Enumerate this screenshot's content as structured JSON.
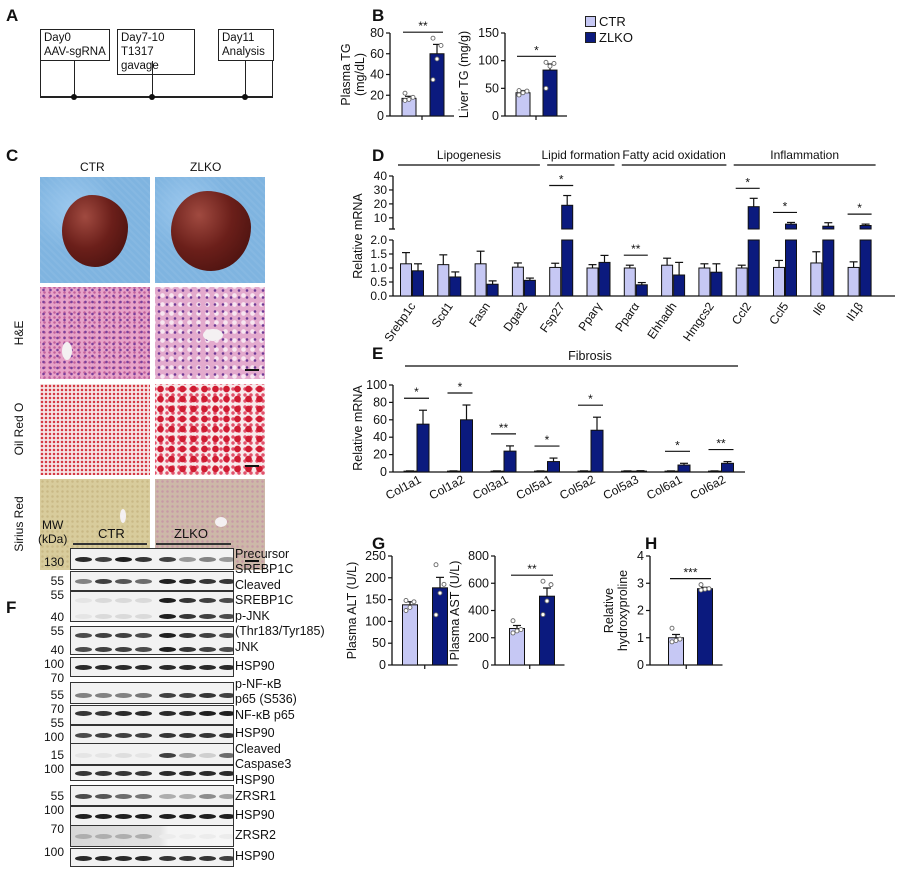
{
  "panel_labels": {
    "A": "A",
    "B": "B",
    "C": "C",
    "D": "D",
    "E": "E",
    "F": "F",
    "G": "G",
    "H": "H"
  },
  "timeline": {
    "steps": [
      {
        "day": "Day0",
        "event": "AAV-sgRNA"
      },
      {
        "day": "Day7-10",
        "event": "T1317 gavage"
      },
      {
        "day": "Day11",
        "event": "Analysis"
      }
    ]
  },
  "legend": [
    {
      "label": "CTR",
      "color": "#c6c8f4"
    },
    {
      "label": "ZLKO",
      "color": "#0b1a7e"
    }
  ],
  "histology": {
    "groups": [
      "CTR",
      "ZLKO"
    ],
    "stains": [
      "H&E",
      "Oil Red O",
      "Sirius Red"
    ]
  },
  "chart_data": [
    {
      "id": "B-plasma-tg",
      "type": "bar",
      "ylabel_lines": [
        "Plasma TG",
        "(mg/dL)"
      ],
      "ylim": [
        0,
        80
      ],
      "yticks": [
        "0",
        "20",
        "40",
        "60",
        "80"
      ],
      "series": [
        {
          "name": "CTR",
          "values": [
            17
          ],
          "sem": [
            2
          ],
          "points": [
            [
              15,
              16,
              18,
              22
            ]
          ]
        },
        {
          "name": "ZLKO",
          "values": [
            60
          ],
          "sem": [
            9
          ],
          "points": [
            [
              35,
              55,
              68,
              75
            ]
          ]
        }
      ],
      "significance": [
        "**"
      ]
    },
    {
      "id": "B-liver-tg",
      "type": "bar",
      "ylabel_lines": [
        "Liver TG (mg/g)"
      ],
      "ylim": [
        0,
        150
      ],
      "yticks": [
        "0",
        "50",
        "100",
        "150"
      ],
      "series": [
        {
          "name": "CTR",
          "values": [
            42
          ],
          "sem": [
            4
          ],
          "points": [
            [
              38,
              42,
              45,
              46
            ]
          ]
        },
        {
          "name": "ZLKO",
          "values": [
            83
          ],
          "sem": [
            11
          ],
          "points": [
            [
              50,
              90,
              95,
              97
            ]
          ]
        }
      ],
      "significance": [
        "*"
      ]
    },
    {
      "id": "D-mrna",
      "type": "bar",
      "ylabel": "Relative mRNA",
      "axis_break": true,
      "ylim_lower": [
        0,
        2
      ],
      "yticks_lower": [
        "0.0",
        "0.5",
        "1.0",
        "1.5",
        "2.0"
      ],
      "ylim_upper": [
        2,
        40
      ],
      "yticks_upper": [
        "10",
        "20",
        "30",
        "40"
      ],
      "categories": [
        "Srebp1c",
        "Scd1",
        "Fasn",
        "Dgat2",
        "Fsp27",
        "Pparγ",
        "Pparα",
        "Ehhadh",
        "Hmgcs2",
        "Ccl2",
        "Ccl5",
        "Il6",
        "Il1β"
      ],
      "groups": [
        {
          "label": "Lipogenesis",
          "from": 0,
          "to": 3
        },
        {
          "label": "Lipid formation",
          "from": 4,
          "to": 5
        },
        {
          "label": "Fatty acid oxidation",
          "from": 6,
          "to": 8
        },
        {
          "label": "Inflammation",
          "from": 9,
          "to": 12
        }
      ],
      "series": [
        {
          "name": "CTR",
          "values": [
            1.15,
            1.12,
            1.15,
            1.03,
            1.02,
            1.0,
            1.0,
            1.1,
            1.0,
            1.0,
            1.02,
            1.18,
            1.02
          ],
          "sem": [
            0.4,
            0.35,
            0.45,
            0.15,
            0.15,
            0.12,
            0.1,
            0.25,
            0.15,
            0.1,
            0.25,
            0.4,
            0.2
          ]
        },
        {
          "name": "ZLKO",
          "values": [
            0.9,
            0.68,
            0.42,
            0.56,
            19,
            1.2,
            0.4,
            0.75,
            0.85,
            18,
            5.5,
            4,
            4.5
          ],
          "sem": [
            0.25,
            0.18,
            0.12,
            0.08,
            7,
            0.25,
            0.08,
            0.45,
            0.3,
            6,
            1.2,
            2.5,
            1
          ]
        }
      ],
      "significance": [
        "",
        "",
        "",
        "",
        "*",
        "",
        "**",
        "",
        "",
        "*",
        "*",
        "",
        "*"
      ]
    },
    {
      "id": "E-fibrosis",
      "type": "bar",
      "ylabel": "Relative mRNA",
      "group_label": "Fibrosis",
      "ylim": [
        0,
        100
      ],
      "yticks": [
        "0",
        "20",
        "40",
        "60",
        "80",
        "100"
      ],
      "categories": [
        "Col1a1",
        "Col1a2",
        "Col3a1",
        "Col5a1",
        "Col5a2",
        "Col5a3",
        "Col6a1",
        "Col6a2"
      ],
      "series": [
        {
          "name": "CTR",
          "values": [
            1,
            1,
            1,
            1,
            1,
            1,
            1,
            1
          ],
          "sem": [
            0.3,
            0.3,
            0.3,
            0.3,
            0.3,
            0.3,
            0.3,
            0.3
          ]
        },
        {
          "name": "ZLKO",
          "values": [
            55,
            60,
            24,
            12,
            48,
            1,
            8,
            10
          ],
          "sem": [
            16,
            17,
            6,
            4,
            15,
            0.5,
            2,
            2
          ]
        }
      ],
      "significance": [
        "*",
        "*",
        "**",
        "*",
        "*",
        "",
        "*",
        "**"
      ]
    },
    {
      "id": "G-alt",
      "type": "bar",
      "ylabel_lines": [
        "Plasma ALT (U/L)"
      ],
      "ylim": [
        0,
        250
      ],
      "yticks": [
        "0",
        "50",
        "100",
        "150",
        "200",
        "250"
      ],
      "series": [
        {
          "name": "CTR",
          "values": [
            138
          ],
          "sem": [
            7
          ],
          "points": [
            [
              125,
              132,
              145,
              148
            ]
          ]
        },
        {
          "name": "ZLKO",
          "values": [
            177
          ],
          "sem": [
            24
          ],
          "points": [
            [
              115,
              165,
              185,
              230
            ]
          ]
        }
      ],
      "significance": [
        ""
      ]
    },
    {
      "id": "G-ast",
      "type": "bar",
      "ylabel_lines": [
        "Plasma AST (U/L)"
      ],
      "ylim": [
        0,
        800
      ],
      "yticks": [
        "0",
        "200",
        "400",
        "600",
        "800"
      ],
      "series": [
        {
          "name": "CTR",
          "values": [
            268
          ],
          "sem": [
            22
          ],
          "points": [
            [
              235,
              250,
              260,
              325
            ]
          ]
        },
        {
          "name": "ZLKO",
          "values": [
            505
          ],
          "sem": [
            60
          ],
          "points": [
            [
              370,
              470,
              590,
              615
            ]
          ]
        }
      ],
      "significance": [
        "**"
      ]
    },
    {
      "id": "H-hydroxyproline",
      "type": "bar",
      "ylabel_lines": [
        "Relative",
        "hydroxyproline"
      ],
      "ylim": [
        0,
        4
      ],
      "yticks": [
        "0",
        "1",
        "2",
        "3",
        "4"
      ],
      "series": [
        {
          "name": "CTR",
          "values": [
            1.0
          ],
          "sem": [
            0.12
          ],
          "points": [
            [
              0.85,
              0.9,
              0.95,
              1.35
            ]
          ]
        },
        {
          "name": "ZLKO",
          "values": [
            2.8
          ],
          "sem": [
            0.05
          ],
          "points": [
            [
              2.75,
              2.78,
              2.8,
              2.95
            ]
          ]
        }
      ],
      "significance": [
        "***"
      ]
    }
  ],
  "western": {
    "mw_header": [
      "MW",
      "(kDa)"
    ],
    "groups": [
      "CTR",
      "ZLKO"
    ],
    "rows": [
      {
        "markers": [
          "130"
        ],
        "label_lines": [
          "Precursor",
          "SREBP1C"
        ],
        "intensity": [
          0.9,
          0.8,
          0.95,
          0.85,
          0.8,
          0.4,
          0.5,
          0.4
        ]
      },
      {
        "markers": [
          "55"
        ],
        "label_lines": [
          "Cleaved",
          "SREBP1C"
        ],
        "intensity": [
          0.5,
          0.8,
          0.7,
          0.6,
          0.95,
          0.9,
          0.85,
          0.85
        ]
      },
      {
        "markers": [
          "55",
          "40"
        ],
        "label_lines": [
          "p-JNK",
          "(Thr183/Tyr185)"
        ],
        "intensity": [
          0.05,
          0.1,
          0.1,
          0.1,
          0.95,
          0.85,
          0.8,
          0.75
        ]
      },
      {
        "markers": [
          "55",
          "40"
        ],
        "label_lines": [
          "JNK"
        ],
        "intensity": [
          0.75,
          0.8,
          0.8,
          0.75,
          0.95,
          0.85,
          0.8,
          0.75
        ]
      },
      {
        "markers": [
          "100"
        ],
        "label_lines": [
          "HSP90"
        ],
        "intensity": [
          0.9,
          0.9,
          0.9,
          0.9,
          0.9,
          0.9,
          0.9,
          0.9
        ]
      },
      {
        "markers": [
          "70",
          "55"
        ],
        "label_lines": [
          "p-NF-κB",
          "p65 (S536)"
        ],
        "intensity": [
          0.5,
          0.5,
          0.5,
          0.55,
          0.8,
          0.8,
          0.85,
          0.8
        ]
      },
      {
        "markers": [
          "70",
          "55"
        ],
        "label_lines": [
          "NF-κB p65"
        ],
        "intensity": [
          0.85,
          0.85,
          0.9,
          0.9,
          0.9,
          0.9,
          0.95,
          0.95
        ]
      },
      {
        "markers": [
          "100"
        ],
        "label_lines": [
          "HSP90"
        ],
        "intensity": [
          0.75,
          0.8,
          0.8,
          0.8,
          0.85,
          0.85,
          0.85,
          0.85
        ]
      },
      {
        "markers": [
          "15"
        ],
        "label_lines": [
          "Cleaved",
          "Caspase3"
        ],
        "intensity": [
          0.05,
          0.05,
          0.08,
          0.05,
          0.8,
          0.35,
          0.15,
          0.6
        ]
      },
      {
        "markers": [
          "100"
        ],
        "label_lines": [
          "HSP90"
        ],
        "intensity": [
          0.85,
          0.85,
          0.85,
          0.85,
          0.9,
          0.9,
          0.9,
          0.9
        ]
      },
      {
        "markers": [
          "55"
        ],
        "label_lines": [
          "ZRSR1"
        ],
        "intensity": [
          0.75,
          0.7,
          0.6,
          0.55,
          0.3,
          0.3,
          0.45,
          0.35
        ]
      },
      {
        "markers": [
          "100"
        ],
        "label_lines": [
          "HSP90"
        ],
        "intensity": [
          0.95,
          0.95,
          0.95,
          0.95,
          0.95,
          0.95,
          0.95,
          0.95
        ]
      },
      {
        "markers": [
          "70"
        ],
        "label_lines": [
          "ZRSR2"
        ],
        "intensity": [
          0.3,
          0.3,
          0.3,
          0.3,
          0.02,
          0.02,
          0.02,
          0.02
        ]
      },
      {
        "markers": [
          "100"
        ],
        "label_lines": [
          "HSP90"
        ],
        "intensity": [
          0.9,
          0.9,
          0.9,
          0.9,
          0.85,
          0.85,
          0.85,
          0.8
        ]
      }
    ]
  }
}
